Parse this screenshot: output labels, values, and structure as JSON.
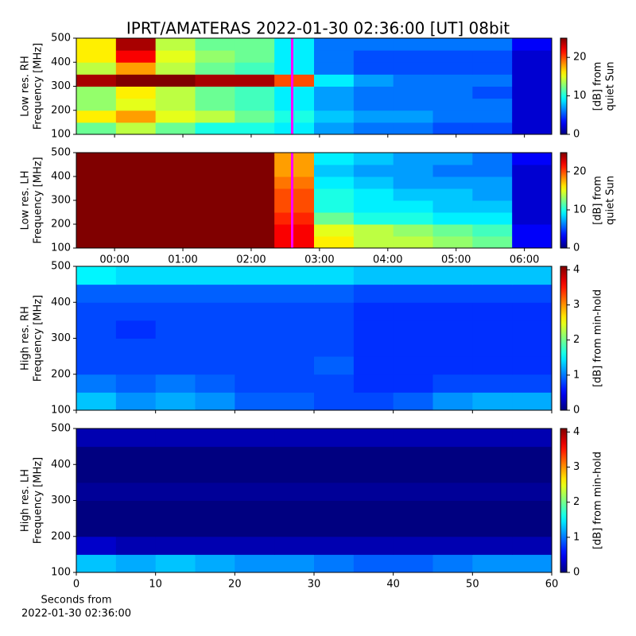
{
  "title": "IPRT/AMATERAS 2022-01-30 02:36:00 [UT]   08bit",
  "chart_data": [
    {
      "type": "heatmap",
      "colormap": "jet",
      "ylabel": [
        "Low res. RH",
        "Frequency [MHz]"
      ],
      "clabel": [
        "[dB] from",
        "quiet Sun"
      ],
      "xlim": [
        -0.56,
        6.4
      ],
      "xticks": [
        0,
        1,
        2,
        3,
        4,
        5,
        6
      ],
      "ylim": [
        100,
        500
      ],
      "yticks": [
        100,
        200,
        300,
        400,
        500
      ],
      "clim": [
        0,
        25
      ],
      "cticks": [
        0,
        10,
        20
      ],
      "vline": {
        "x": 2.6,
        "color": "#ff00ff"
      },
      "z": [
        [
          12,
          14,
          12,
          10,
          10,
          9,
          7,
          6,
          6,
          5,
          5,
          2
        ],
        [
          16,
          18,
          15,
          14,
          12,
          10,
          8,
          7,
          7,
          6,
          6,
          2
        ],
        [
          13,
          15,
          14,
          12,
          11,
          9,
          7,
          6,
          6,
          6,
          6,
          2
        ],
        [
          13,
          16,
          14,
          12,
          11,
          9,
          7,
          6,
          6,
          6,
          5,
          2
        ],
        [
          24,
          25,
          25,
          24,
          24,
          20,
          9,
          7,
          6,
          6,
          6,
          2
        ],
        [
          14,
          18,
          14,
          12,
          11,
          9,
          6,
          5,
          5,
          5,
          5,
          2
        ],
        [
          16,
          22,
          15,
          13,
          12,
          9,
          6,
          5,
          5,
          5,
          5,
          2
        ],
        [
          16,
          24,
          14,
          12,
          12,
          9,
          6,
          6,
          6,
          6,
          6,
          3
        ]
      ]
    },
    {
      "type": "heatmap",
      "colormap": "jet",
      "ylabel": [
        "Low res. LH",
        "Frequency [MHz]"
      ],
      "clabel": [
        "[dB] from",
        "quiet Sun"
      ],
      "xlim": [
        -0.56,
        6.4
      ],
      "xticks": [
        {
          "value": 0,
          "label": "00:00"
        },
        {
          "value": 1,
          "label": "01:00"
        },
        {
          "value": 2,
          "label": "02:00"
        },
        {
          "value": 3,
          "label": "03:00"
        },
        {
          "value": 4,
          "label": "04:00"
        },
        {
          "value": 5,
          "label": "05:00"
        },
        {
          "value": 6,
          "label": "06:00"
        }
      ],
      "ylim": [
        100,
        500
      ],
      "yticks": [
        100,
        200,
        300,
        400,
        500
      ],
      "clim": [
        0,
        25
      ],
      "cticks": [
        0,
        10,
        20
      ],
      "vline": {
        "x": 2.6,
        "color": "#ff00ff"
      },
      "z": [
        [
          25,
          25,
          25,
          25,
          25,
          22,
          16,
          14,
          14,
          13,
          12,
          3
        ],
        [
          25,
          25,
          25,
          25,
          25,
          22,
          15,
          14,
          13,
          12,
          11,
          3
        ],
        [
          25,
          25,
          25,
          25,
          25,
          21,
          12,
          10,
          10,
          9,
          9,
          2
        ],
        [
          25,
          25,
          25,
          25,
          25,
          20,
          10,
          9,
          9,
          8,
          8,
          2
        ],
        [
          25,
          25,
          25,
          25,
          25,
          20,
          10,
          9,
          8,
          8,
          7,
          2
        ],
        [
          25,
          25,
          25,
          25,
          25,
          19,
          9,
          8,
          7,
          7,
          7,
          2
        ],
        [
          25,
          25,
          25,
          25,
          25,
          18,
          8,
          7,
          7,
          6,
          6,
          2
        ],
        [
          25,
          25,
          25,
          25,
          25,
          18,
          9,
          8,
          7,
          7,
          6,
          3
        ]
      ]
    },
    {
      "type": "heatmap",
      "colormap": "jet",
      "ylabel": [
        "High res. RH",
        "Frequency [MHz]"
      ],
      "clabel": [
        "[dB] from min-hold"
      ],
      "xlim": [
        0,
        60
      ],
      "xticks": [
        0,
        10,
        20,
        30,
        40,
        50,
        60
      ],
      "ylim": [
        100,
        500
      ],
      "yticks": [
        100,
        200,
        300,
        400,
        500
      ],
      "clim": [
        0,
        4.1
      ],
      "cticks": [
        0,
        1,
        2,
        3,
        4
      ],
      "z": [
        [
          1.3,
          1.1,
          1.2,
          1.1,
          0.9,
          0.9,
          0.8,
          0.8,
          0.9,
          1.1,
          1.2,
          1.2
        ],
        [
          1.0,
          0.9,
          1.0,
          0.9,
          0.8,
          0.8,
          0.8,
          0.7,
          0.7,
          0.8,
          0.8,
          0.8
        ],
        [
          0.8,
          0.8,
          0.8,
          0.8,
          0.8,
          0.8,
          0.9,
          0.7,
          0.7,
          0.7,
          0.7,
          0.7
        ],
        [
          0.8,
          0.8,
          0.8,
          0.8,
          0.8,
          0.8,
          0.8,
          0.7,
          0.7,
          0.7,
          0.7,
          0.7
        ],
        [
          0.8,
          0.7,
          0.8,
          0.8,
          0.8,
          0.8,
          0.8,
          0.7,
          0.7,
          0.7,
          0.7,
          0.7
        ],
        [
          0.8,
          0.8,
          0.8,
          0.8,
          0.8,
          0.8,
          0.8,
          0.7,
          0.7,
          0.7,
          0.7,
          0.7
        ],
        [
          0.9,
          0.9,
          0.9,
          0.9,
          0.9,
          0.9,
          0.9,
          0.8,
          0.8,
          0.8,
          0.8,
          0.8
        ],
        [
          1.5,
          1.4,
          1.4,
          1.4,
          1.4,
          1.4,
          1.4,
          1.3,
          1.3,
          1.3,
          1.3,
          1.3
        ]
      ]
    },
    {
      "type": "heatmap",
      "colormap": "jet",
      "ylabel": [
        "High res. LH",
        "Frequency [MHz]"
      ],
      "clabel": [
        "[dB] from min-hold"
      ],
      "xlabel": [
        "Seconds from",
        "2022-01-30 02:36:00"
      ],
      "xlim": [
        0,
        60
      ],
      "xticks": [
        0,
        10,
        20,
        30,
        40,
        50,
        60
      ],
      "ylim": [
        100,
        500
      ],
      "yticks": [
        100,
        200,
        300,
        400,
        500
      ],
      "clim": [
        0,
        4.1
      ],
      "cticks": [
        0,
        1,
        2,
        3,
        4
      ],
      "z": [
        [
          1.3,
          1.2,
          1.3,
          1.2,
          1.1,
          1.1,
          1.0,
          0.9,
          0.9,
          1.0,
          1.1,
          1.1
        ],
        [
          0.3,
          0.2,
          0.2,
          0.2,
          0.2,
          0.2,
          0.2,
          0.2,
          0.2,
          0.2,
          0.2,
          0.2
        ],
        [
          0,
          0,
          0,
          0,
          0,
          0,
          0,
          0,
          0,
          0,
          0,
          0
        ],
        [
          0,
          0,
          0,
          0,
          0,
          0,
          0,
          0,
          0,
          0,
          0,
          0
        ],
        [
          0.1,
          0.1,
          0.1,
          0.1,
          0.1,
          0.1,
          0.1,
          0.1,
          0.1,
          0.1,
          0.1,
          0.1
        ],
        [
          0,
          0,
          0,
          0,
          0,
          0,
          0,
          0,
          0,
          0,
          0,
          0
        ],
        [
          0,
          0,
          0,
          0,
          0,
          0,
          0,
          0,
          0,
          0,
          0,
          0
        ],
        [
          0.2,
          0.2,
          0.2,
          0.2,
          0.2,
          0.2,
          0.2,
          0.2,
          0.2,
          0.2,
          0.2,
          0.2
        ]
      ]
    }
  ]
}
